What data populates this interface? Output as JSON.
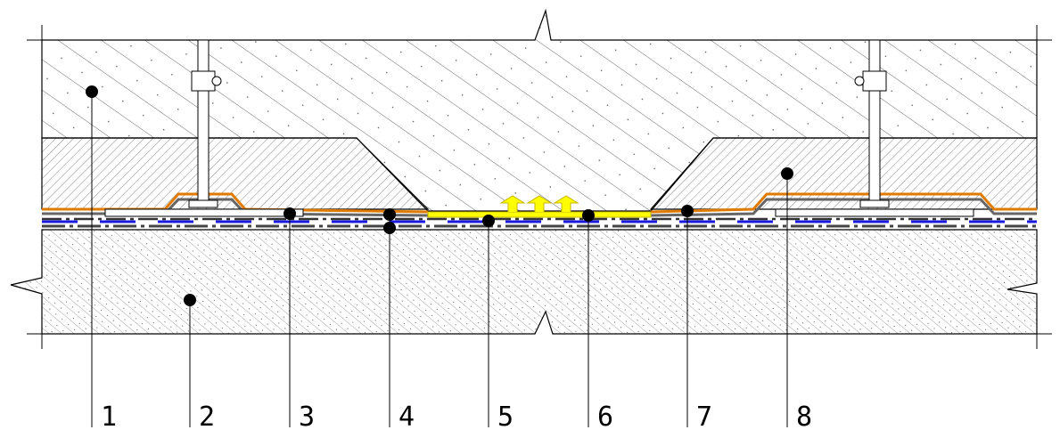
{
  "callouts": [
    {
      "label": "1"
    },
    {
      "label": "2"
    },
    {
      "label": "3"
    },
    {
      "label": "4"
    },
    {
      "label": "5"
    },
    {
      "label": "6"
    },
    {
      "label": "7"
    },
    {
      "label": "8"
    }
  ]
}
